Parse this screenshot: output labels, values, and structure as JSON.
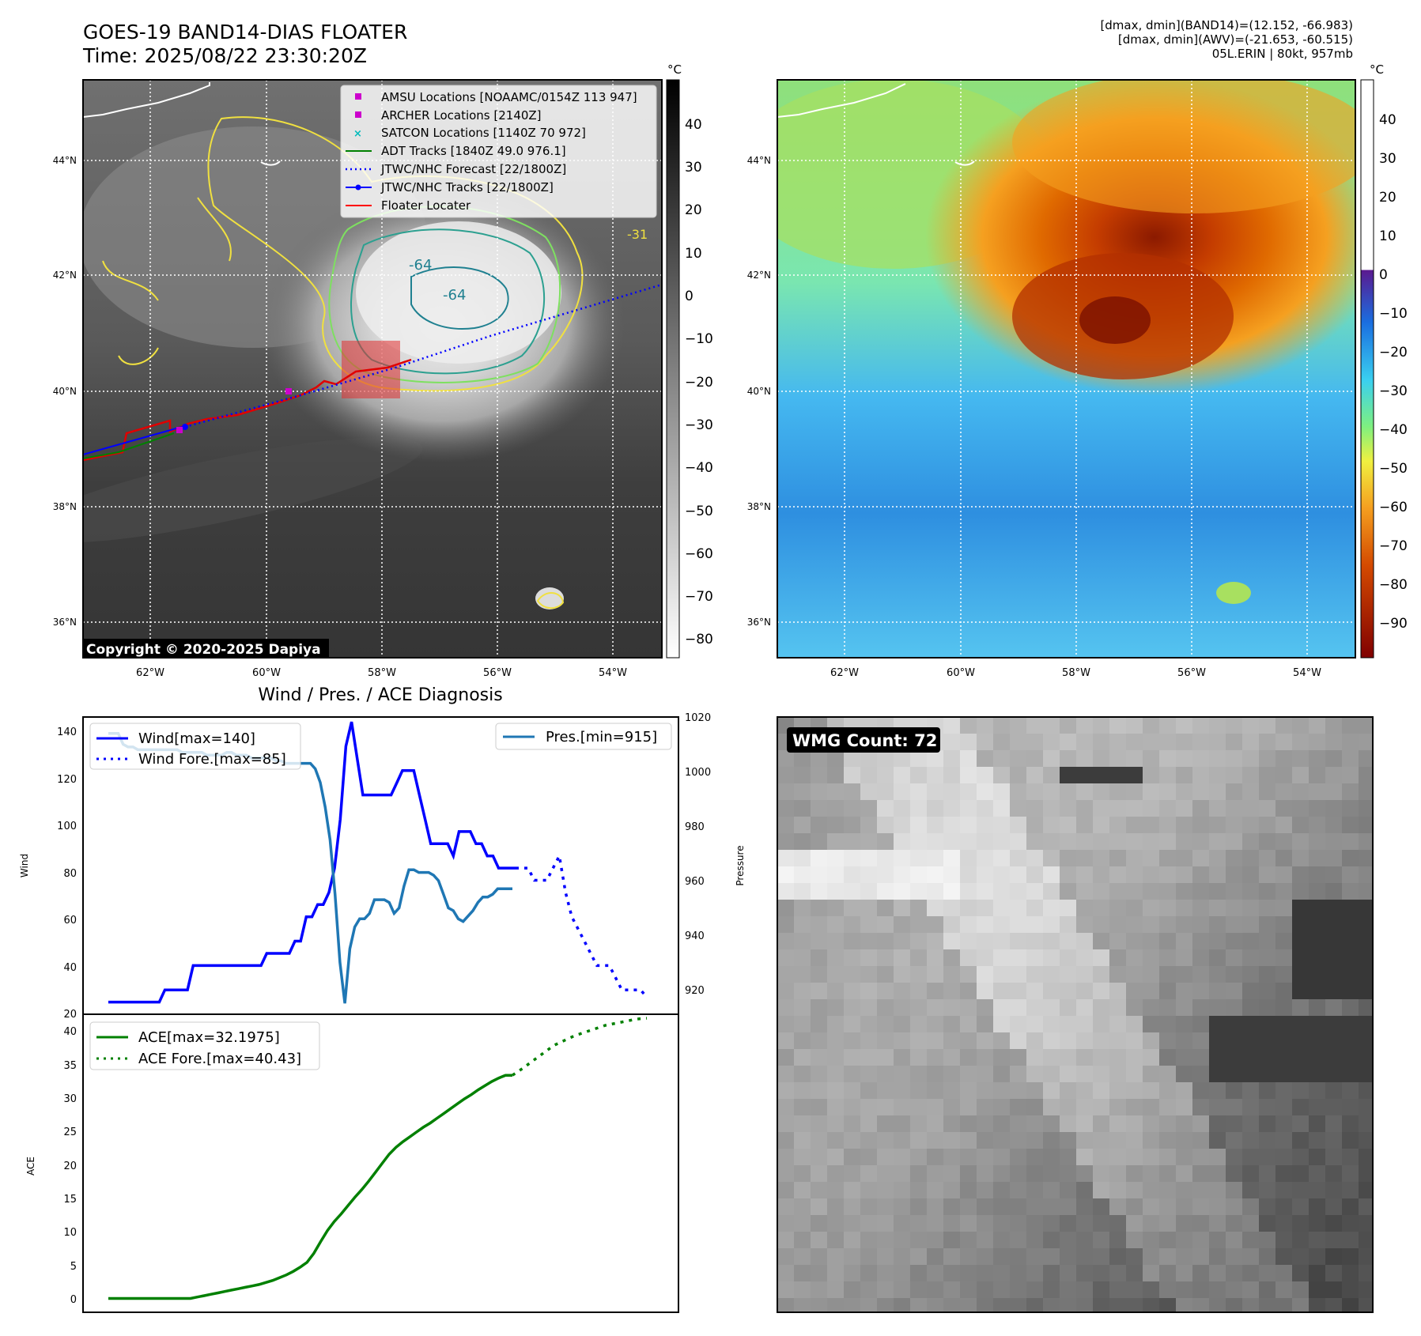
{
  "header": {
    "title_line1": "GOES-19 BAND14-DIAS FLOATER",
    "title_line2": "Time: 2025/08/22 23:30:20Z",
    "info_line1": "[dmax, dmin](BAND14)=(12.152, -66.983)",
    "info_line2": "[dmax, dmin](AWV)=(-21.653, -60.515)",
    "info_line3": "05L.ERIN | 80kt, 957mb"
  },
  "ir_map": {
    "lat_ticks": [
      "44°N",
      "42°N",
      "40°N",
      "38°N",
      "36°N"
    ],
    "lon_ticks": [
      "62°W",
      "60°W",
      "58°W",
      "56°W",
      "54°W"
    ],
    "contour_labels": [
      "-64",
      "-64",
      "-31"
    ],
    "copyright": "Copyright © 2020-2025 Dapiya",
    "colorbar_unit": "°C",
    "colorbar_ticks": [
      "40",
      "30",
      "20",
      "10",
      "0",
      "−10",
      "−20",
      "−30",
      "−40",
      "−50",
      "−60",
      "−70",
      "−80"
    ],
    "legend": [
      {
        "label": "AMSU Locations [NOAAMC/0154Z 113 947]",
        "color": "#cc00cc",
        "marker": "square"
      },
      {
        "label": "ARCHER Locations [2140Z]",
        "color": "#cc00cc",
        "marker": "square"
      },
      {
        "label": "SATCON Locations [1140Z 70 972]",
        "color": "#00bbbb",
        "marker": "x"
      },
      {
        "label": "ADT Tracks [1840Z 49.0 976.1]",
        "color": "#008000",
        "marker": "line"
      },
      {
        "label": "JTWC/NHC Forecast [22/1800Z]",
        "color": "#0000ff",
        "marker": "dotted"
      },
      {
        "label": "JTWC/NHC Tracks [22/1800Z]",
        "color": "#0000ff",
        "marker": "line-dot"
      },
      {
        "label": "Floater Locater",
        "color": "#ff0000",
        "marker": "line"
      }
    ]
  },
  "wv_map": {
    "lat_ticks": [
      "44°N",
      "42°N",
      "40°N",
      "38°N",
      "36°N"
    ],
    "lon_ticks": [
      "62°W",
      "60°W",
      "58°W",
      "56°W",
      "54°W"
    ],
    "colorbar_unit": "°C",
    "colorbar_ticks": [
      "40",
      "30",
      "20",
      "10",
      "0",
      "−10",
      "−20",
      "−30",
      "−40",
      "−50",
      "−60",
      "−70",
      "−80",
      "−90"
    ]
  },
  "wmg": {
    "label": "WMG Count: 72"
  },
  "chart_data": [
    {
      "type": "line",
      "title": "Wind / Pres. / ACE Diagnosis",
      "ylabel": "Wind",
      "y2label": "Pressure",
      "ylim": [
        20,
        142
      ],
      "y2lim": [
        911,
        1020
      ],
      "yticks": [
        "140",
        "120",
        "100",
        "80",
        "60",
        "40",
        "20"
      ],
      "y2ticks": [
        "1020",
        "1000",
        "980",
        "960",
        "940",
        "920"
      ],
      "series": [
        {
          "name": "Wind[max=140]",
          "color": "#0000ff",
          "style": "solid",
          "values": [
            25,
            25,
            25,
            25,
            25,
            25,
            25,
            25,
            25,
            25,
            30,
            30,
            30,
            30,
            30,
            40,
            40,
            40,
            40,
            40,
            40,
            40,
            40,
            40,
            40,
            40,
            40,
            40,
            45,
            45,
            45,
            45,
            45,
            50,
            50,
            60,
            60,
            65,
            65,
            70,
            80,
            100,
            130,
            140,
            125,
            110,
            110,
            110,
            110,
            110,
            110,
            115,
            120,
            120,
            120,
            110,
            100,
            90,
            90,
            90,
            90,
            85,
            95,
            95,
            95,
            90,
            90,
            85,
            85,
            80,
            80,
            80,
            80
          ]
        },
        {
          "name": "Wind Fore.[max=85]",
          "color": "#0000ff",
          "style": "dotted",
          "values": [
            80,
            80,
            80,
            75,
            75,
            75,
            80,
            85,
            70,
            60,
            55,
            50,
            45,
            40,
            40,
            40,
            35,
            30,
            30,
            30,
            30,
            27
          ]
        },
        {
          "name": "Pres.[min=915]",
          "color": "#1f77b4",
          "style": "solid",
          "values": [
            1014,
            1014,
            1014,
            1010,
            1009,
            1009,
            1008,
            1008,
            1008,
            1008,
            1008,
            1008,
            1008,
            1008,
            1008,
            1007,
            1007,
            1007,
            1007,
            1007,
            1006,
            1006,
            1006,
            1006,
            1007,
            1007,
            1006,
            1006,
            1006,
            1005,
            1005,
            1005,
            1005,
            1005,
            1004,
            1004,
            1003,
            1003,
            1003,
            1003,
            1003,
            1003,
            1001,
            996,
            987,
            975,
            955,
            930,
            915,
            935,
            943,
            946,
            946,
            948,
            953,
            953,
            953,
            952,
            948,
            950,
            958,
            964,
            964,
            963,
            963,
            963,
            962,
            960,
            955,
            950,
            949,
            946,
            945,
            947,
            949,
            952,
            954,
            954,
            955,
            957,
            957,
            957,
            957
          ]
        }
      ]
    },
    {
      "type": "line",
      "ylabel": "ACE",
      "ylim": [
        -2,
        41
      ],
      "yticks": [
        "40",
        "35",
        "30",
        "25",
        "20",
        "15",
        "10",
        "5",
        "0"
      ],
      "series": [
        {
          "name": "ACE[max=32.1975]",
          "color": "#008000",
          "style": "solid",
          "values": [
            0,
            0,
            0,
            0,
            0,
            0,
            0,
            0,
            0,
            0,
            0,
            0,
            0,
            0.2,
            0.4,
            0.6,
            0.8,
            1.0,
            1.2,
            1.4,
            1.6,
            1.8,
            2.0,
            2.3,
            2.6,
            3.0,
            3.4,
            3.9,
            4.5,
            5.2,
            6.5,
            8.2,
            9.8,
            11.1,
            12.2,
            13.4,
            14.6,
            15.7,
            16.9,
            18.2,
            19.5,
            20.8,
            21.8,
            22.6,
            23.3,
            24.0,
            24.7,
            25.3,
            26.0,
            26.7,
            27.4,
            28.1,
            28.8,
            29.4,
            30.1,
            30.7,
            31.3,
            31.8,
            32.2,
            32.2
          ]
        },
        {
          "name": "ACE Fore.[max=40.43]",
          "color": "#008000",
          "style": "dotted",
          "values": [
            32.2,
            33.2,
            34.3,
            35.4,
            36.5,
            37.2,
            37.9,
            38.4,
            38.9,
            39.4,
            39.7,
            40.0,
            40.3,
            40.43
          ]
        }
      ]
    }
  ]
}
